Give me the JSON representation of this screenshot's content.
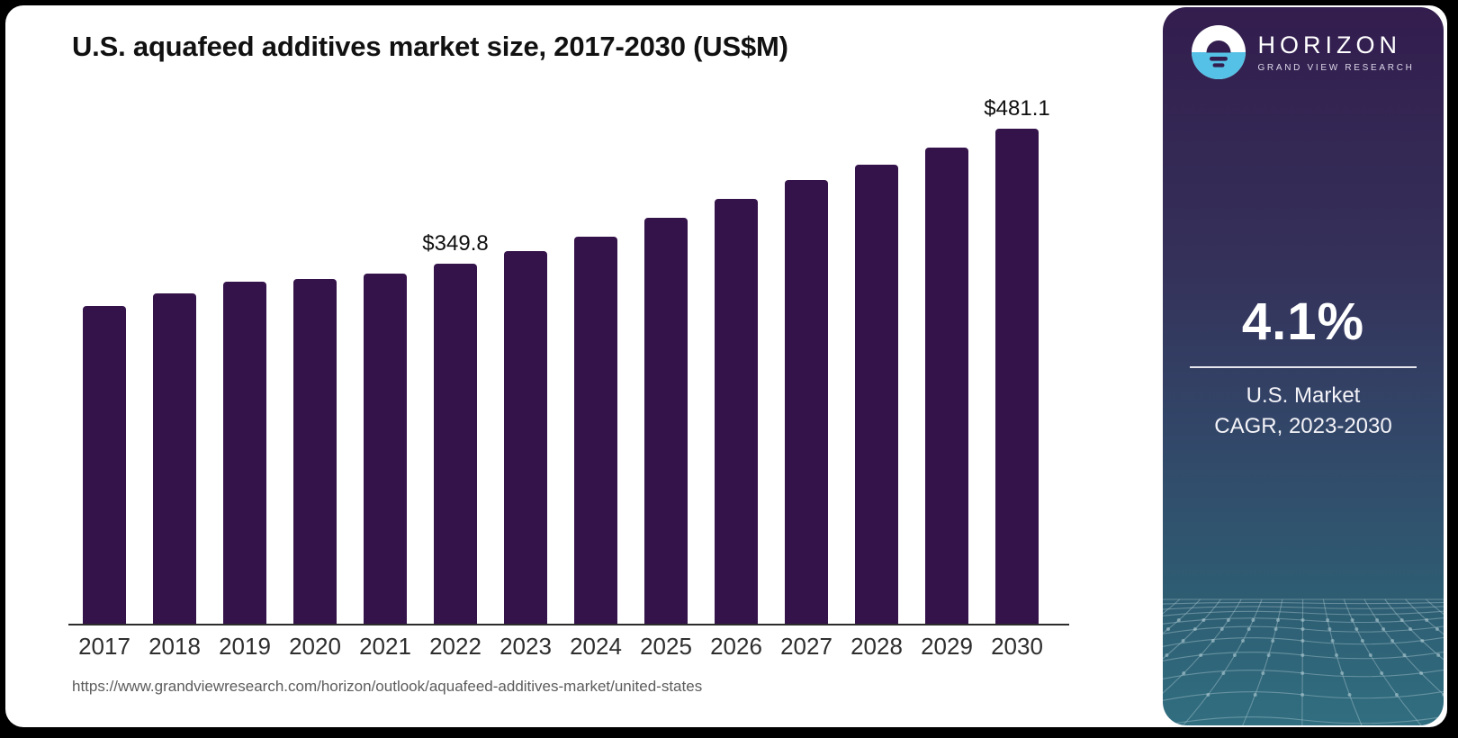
{
  "header": {
    "title": "U.S. aquafeed additives market size, 2017-2030 (US$M)"
  },
  "chart_data": {
    "type": "bar",
    "title": "U.S. aquafeed additives market size, 2017-2030 (US$M)",
    "unit": "US$M",
    "categories": [
      "2017",
      "2018",
      "2019",
      "2020",
      "2021",
      "2022",
      "2023",
      "2024",
      "2025",
      "2026",
      "2027",
      "2028",
      "2029",
      "2030"
    ],
    "values": [
      308.7,
      321.0,
      332.1,
      334.8,
      339.9,
      349.8,
      362.5,
      376.0,
      394.8,
      413.3,
      430.9,
      446.1,
      462.4,
      481.1
    ],
    "data_labels": [
      {
        "index": 5,
        "text": "$349.8"
      },
      {
        "index": 13,
        "text": "$481.1"
      }
    ],
    "ylim": [
      0,
      560
    ],
    "grid": false,
    "legend": "none",
    "bar_color": "#34124a"
  },
  "footer": {
    "source_url": "https://www.grandviewresearch.com/horizon/outlook/aquafeed-additives-market/united-states"
  },
  "sidebar": {
    "brand": {
      "name": "HORIZON",
      "subtitle": "GRAND VIEW RESEARCH",
      "logo_icon": "horizon-sun-circle-icon"
    },
    "stat": {
      "value": "4.1%",
      "caption_line1": "U.S. Market",
      "caption_line2": "CAGR, 2023-2030"
    }
  },
  "colors": {
    "bar": "#34124a",
    "logo_blue": "#56c1e6",
    "logo_dark": "#321d4e",
    "sidebar_gradient_top": "#331d4e",
    "sidebar_gradient_bottom": "#316e80",
    "page_background": "#000000",
    "card_background": "#ffffff"
  }
}
